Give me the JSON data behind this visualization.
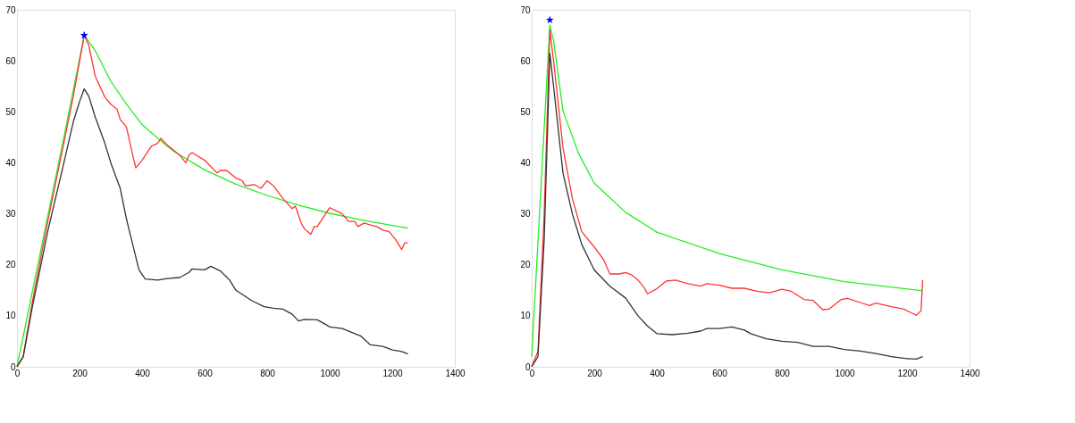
{
  "chart_data": [
    {
      "type": "line",
      "xlim": [
        0,
        1400
      ],
      "ylim": [
        0,
        70
      ],
      "xticks": [
        0,
        200,
        400,
        600,
        800,
        1000,
        1200,
        1400
      ],
      "yticks": [
        0,
        10,
        20,
        30,
        40,
        50,
        60,
        70
      ],
      "grid": false,
      "line_style": "solid",
      "series": [
        {
          "color": "#22ee22",
          "x": [
            0,
            50,
            100,
            150,
            215,
            250,
            300,
            350,
            400,
            450,
            500,
            600,
            700,
            800,
            900,
            1000,
            1100,
            1200,
            1250
          ],
          "values": [
            0,
            15,
            30,
            45,
            65,
            62,
            56,
            51.5,
            47.5,
            44.8,
            42.3,
            38.6,
            35.8,
            33.6,
            31.7,
            30.1,
            28.8,
            27.7,
            27.2
          ]
        },
        {
          "color": "#ff3333",
          "x": [
            0,
            20,
            50,
            100,
            150,
            180,
            215,
            230,
            250,
            280,
            300,
            320,
            330,
            350,
            370,
            380,
            400,
            430,
            450,
            460,
            480,
            520,
            540,
            550,
            560,
            600,
            640,
            650,
            670,
            700,
            720,
            730,
            760,
            780,
            800,
            820,
            850,
            880,
            890,
            910,
            920,
            940,
            950,
            960,
            1000,
            1040,
            1060,
            1080,
            1090,
            1110,
            1130,
            1150,
            1170,
            1190,
            1210,
            1230,
            1240,
            1250
          ],
          "values": [
            0,
            2,
            13,
            29,
            44,
            53,
            65,
            63,
            57,
            53,
            51.5,
            50.5,
            48.5,
            47,
            41.5,
            39,
            40.5,
            43.3,
            43.8,
            44.8,
            43.5,
            41.5,
            40,
            41.5,
            42,
            40.5,
            38,
            38.5,
            38.5,
            37,
            36.5,
            35.5,
            35.7,
            35,
            36.5,
            35.5,
            33,
            31,
            31.5,
            28,
            27,
            26,
            27.5,
            27.5,
            31.2,
            30,
            28.5,
            28.5,
            27.5,
            28.2,
            27.8,
            27.5,
            26.8,
            26.5,
            25,
            23,
            24.3,
            24.3
          ]
        },
        {
          "color": "#333333",
          "x": [
            0,
            20,
            50,
            100,
            150,
            180,
            200,
            215,
            230,
            250,
            280,
            300,
            330,
            350,
            370,
            390,
            410,
            450,
            480,
            520,
            550,
            560,
            600,
            620,
            650,
            680,
            700,
            750,
            790,
            820,
            850,
            880,
            900,
            920,
            960,
            990,
            1000,
            1040,
            1080,
            1100,
            1130,
            1170,
            1200,
            1230,
            1250
          ],
          "values": [
            0,
            2,
            12,
            27,
            40,
            48,
            52,
            54.5,
            53,
            49,
            44,
            40,
            35,
            29,
            24,
            19,
            17.2,
            17,
            17.3,
            17.5,
            18.5,
            19.2,
            19,
            19.7,
            18.8,
            17,
            15,
            13,
            11.8,
            11.5,
            11.3,
            10.3,
            9,
            9.3,
            9.2,
            8.2,
            7.8,
            7.5,
            6.5,
            6,
            4.3,
            4,
            3.3,
            3,
            2.5
          ]
        },
        {
          "type": "scatter",
          "marker": "star",
          "color": "#0000ff",
          "x": [
            215
          ],
          "values": [
            65
          ]
        }
      ]
    },
    {
      "type": "line",
      "xlim": [
        0,
        1400
      ],
      "ylim": [
        0,
        70
      ],
      "xticks": [
        0,
        200,
        400,
        600,
        800,
        1000,
        1200,
        1400
      ],
      "yticks": [
        0,
        10,
        20,
        30,
        40,
        50,
        60,
        70
      ],
      "grid": false,
      "line_style": "solid",
      "series": [
        {
          "color": "#22ee22",
          "x": [
            0,
            58,
            70,
            100,
            150,
            200,
            300,
            400,
            600,
            800,
            1000,
            1250
          ],
          "values": [
            2,
            67,
            64,
            50.2,
            41.8,
            36,
            30.3,
            26.4,
            22.2,
            19,
            16.7,
            14.9
          ]
        },
        {
          "color": "#ff3333",
          "x": [
            0,
            20,
            40,
            58,
            70,
            100,
            130,
            160,
            200,
            230,
            250,
            280,
            300,
            320,
            340,
            360,
            370,
            400,
            430,
            460,
            500,
            540,
            560,
            600,
            640,
            680,
            720,
            760,
            800,
            830,
            870,
            900,
            930,
            950,
            990,
            1010,
            1050,
            1080,
            1100,
            1150,
            1190,
            1230,
            1245,
            1250
          ],
          "values": [
            0,
            3,
            30,
            66,
            60,
            43,
            33,
            26.5,
            23.5,
            21,
            18.2,
            18.2,
            18.5,
            18,
            17,
            15.5,
            14.3,
            15.3,
            16.8,
            17,
            16.3,
            15.8,
            16.3,
            16,
            15.4,
            15.4,
            14.8,
            14.5,
            15.2,
            14.8,
            13.2,
            13,
            11.2,
            11.3,
            13.2,
            13.4,
            12.6,
            12,
            12.5,
            11.8,
            11.3,
            10.1,
            11,
            17
          ]
        },
        {
          "color": "#333333",
          "x": [
            0,
            20,
            40,
            58,
            70,
            100,
            130,
            160,
            200,
            250,
            300,
            340,
            370,
            400,
            450,
            500,
            540,
            560,
            600,
            640,
            680,
            700,
            750,
            800,
            850,
            900,
            950,
            1000,
            1050,
            1100,
            1150,
            1200,
            1230,
            1250
          ],
          "values": [
            0,
            2,
            25,
            61.5,
            55,
            38,
            30,
            24,
            19,
            15.8,
            13.5,
            10,
            8,
            6.5,
            6.3,
            6.6,
            7,
            7.5,
            7.5,
            7.8,
            7.2,
            6.5,
            5.5,
            5,
            4.8,
            4,
            4,
            3.4,
            3.1,
            2.6,
            2,
            1.6,
            1.5,
            2
          ]
        },
        {
          "type": "scatter",
          "marker": "star",
          "color": "#0000ff",
          "x": [
            58
          ],
          "values": [
            68
          ]
        }
      ]
    }
  ]
}
